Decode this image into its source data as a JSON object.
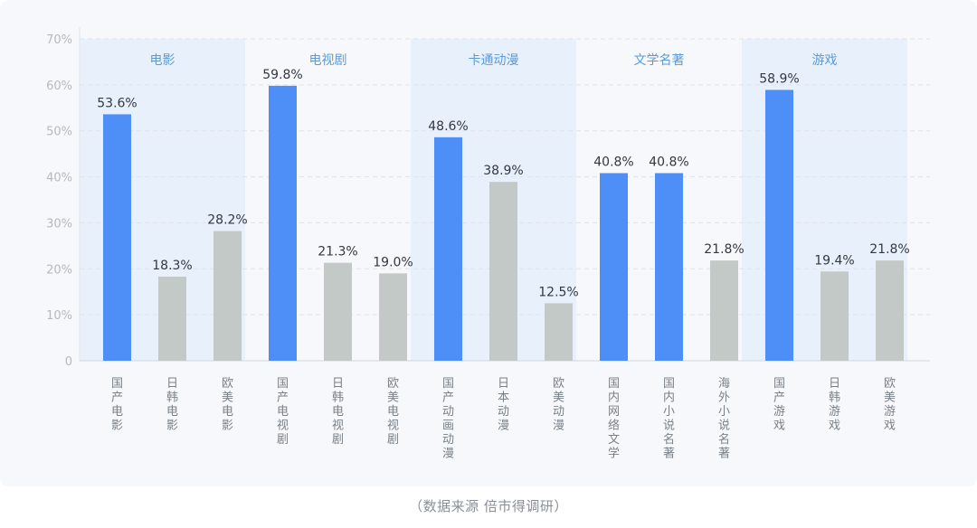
{
  "source_note": "（数据来源 倍市得调研）",
  "chart_data": {
    "type": "bar",
    "ylim": [
      0,
      70
    ],
    "yticks": [
      0,
      10,
      20,
      30,
      40,
      50,
      60,
      70
    ],
    "ytick_labels": [
      "0",
      "10%",
      "20%",
      "30%",
      "40%",
      "50%",
      "60%",
      "70%"
    ],
    "grid": true,
    "groups": [
      {
        "name": "电影",
        "shaded": true,
        "categories": [
          "国产电影",
          "日韩电影",
          "欧美电影"
        ],
        "values": [
          53.6,
          18.3,
          28.2
        ],
        "labels": [
          "53.6%",
          "18.3%",
          "28.2%"
        ],
        "highlight": [
          true,
          false,
          false
        ]
      },
      {
        "name": "电视剧",
        "shaded": false,
        "categories": [
          "国产电视剧",
          "日韩电视剧",
          "欧美电视剧"
        ],
        "values": [
          59.8,
          21.3,
          19.0
        ],
        "labels": [
          "59.8%",
          "21.3%",
          "19.0%"
        ],
        "highlight": [
          true,
          false,
          false
        ]
      },
      {
        "name": "卡通动漫",
        "shaded": true,
        "categories": [
          "国产动画动漫",
          "日本动漫",
          "欧美动漫"
        ],
        "values": [
          48.6,
          38.9,
          12.5
        ],
        "labels": [
          "48.6%",
          "38.9%",
          "12.5%"
        ],
        "highlight": [
          true,
          false,
          false
        ]
      },
      {
        "name": "文学名著",
        "shaded": false,
        "categories": [
          "国内网络文学",
          "国内小说名著",
          "海外小说名著"
        ],
        "values": [
          40.8,
          40.8,
          21.8
        ],
        "labels": [
          "40.8%",
          "40.8%",
          "21.8%"
        ],
        "highlight": [
          true,
          true,
          false
        ]
      },
      {
        "name": "游戏",
        "shaded": true,
        "categories": [
          "国产游戏",
          "日韩游戏",
          "欧美游戏"
        ],
        "values": [
          58.9,
          19.4,
          21.8
        ],
        "labels": [
          "58.9%",
          "19.4%",
          "21.8%"
        ],
        "highlight": [
          true,
          false,
          false
        ]
      }
    ],
    "colors": {
      "highlight_bar": "#4e8ef7",
      "other_bar": "#c3c9c6",
      "group_shade": "#e8f1fb",
      "group_label": "#5b9ad8",
      "value_label": "#333840",
      "axis_text": "#b5bac0",
      "category_text": "#7a8088",
      "grid": "#dfe3e8"
    }
  }
}
